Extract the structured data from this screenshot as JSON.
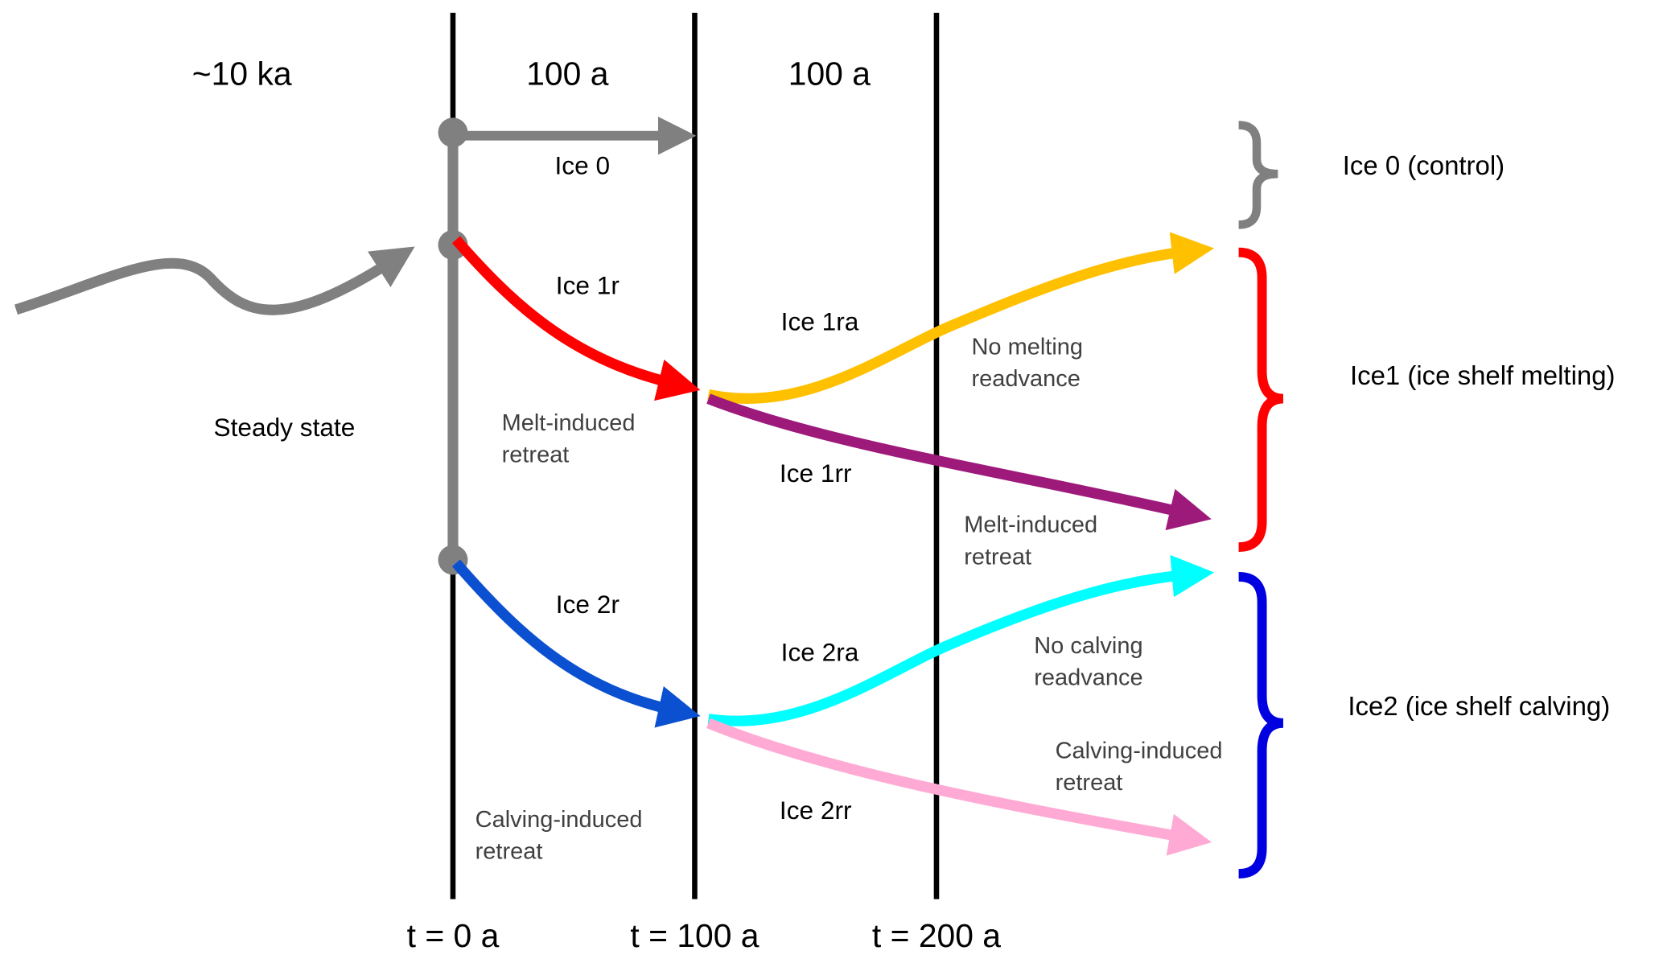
{
  "periods": [
    "~10 ka",
    "100 a",
    "100 a"
  ],
  "time_marks": [
    "t = 0 a",
    "t = 100 a",
    "t = 200 a"
  ],
  "runs": [
    "Ice 0",
    "Ice 1r",
    "Ice 1ra",
    "Ice 1rr",
    "Ice 2r",
    "Ice 2ra",
    "Ice 2rr"
  ],
  "notes": {
    "steady_state": "Steady state",
    "melt_retreat_1": [
      "Melt-induced",
      "retreat"
    ],
    "no_melting_readvance": [
      "No melting",
      "readvance"
    ],
    "melt_retreat_2": [
      "Melt-induced",
      "retreat"
    ],
    "no_calving_readvance": [
      "No calving",
      "readvance"
    ],
    "calving_retreat_2": [
      "Calving-induced",
      "retreat"
    ],
    "calving_retreat_1": [
      "Calving-induced",
      "retreat"
    ]
  },
  "groups": [
    "Ice 0 (control)",
    "Ice1 (ice shelf melting)",
    "Ice2 (ice shelf calving)"
  ]
}
